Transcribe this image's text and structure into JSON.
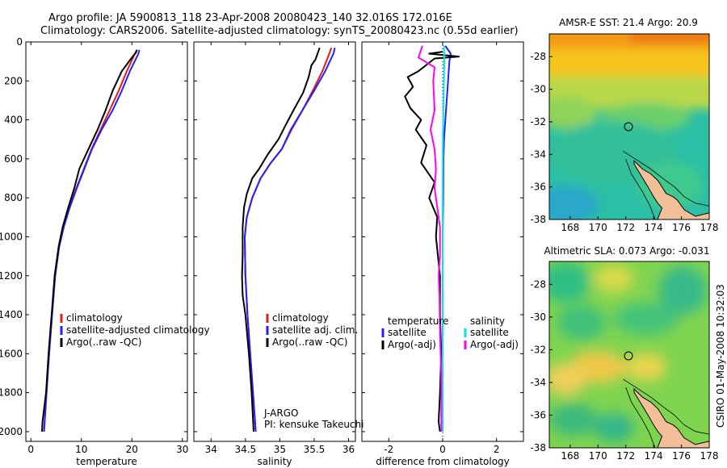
{
  "header": {
    "line1": "Argo profile: JA 5900813_118 23-Apr-2008 20080423_140 32.016S 172.016E",
    "line2": "Climatology: CARS2006. Satellite-adjusted climatology: synTS_20080423.nc (0.55d earlier)"
  },
  "side_label": "CSIRO 01-May-2008 10:32:03",
  "float_info": {
    "program": "J-ARGO",
    "pi": "PI: kensuke Takeuchi"
  },
  "colors": {
    "climatology": "#e31a1c",
    "satellite": "#1f1fff",
    "argo": "#000000",
    "salinity_satellite": "#00e5e5",
    "salinity_argo": "#ff00ff",
    "land": "#f3bf98"
  },
  "chart_data": [
    {
      "id": "temperature",
      "type": "line",
      "xlabel": "temperature",
      "ylabel": "",
      "xlim": [
        -1,
        31
      ],
      "ylim": [
        2050,
        0
      ],
      "xticks": [
        "0",
        "10",
        "20",
        "30"
      ],
      "yticks": [
        "0",
        "200",
        "400",
        "600",
        "800",
        "1000",
        "1200",
        "1400",
        "1600",
        "1800",
        "2000"
      ],
      "legend": [
        "climatology",
        "satellite-adjusted climatology",
        "Argo(..raw -QC)"
      ],
      "series": [
        {
          "name": "climatology",
          "color": "#e31a1c",
          "points": [
            [
              21.0,
              40
            ],
            [
              20.6,
              60
            ],
            [
              19.0,
              150
            ],
            [
              17.4,
              250
            ],
            [
              15.6,
              350
            ],
            [
              13.8,
              450
            ],
            [
              12.0,
              550
            ],
            [
              10.5,
              650
            ],
            [
              9.0,
              750
            ],
            [
              7.6,
              850
            ],
            [
              6.5,
              950
            ],
            [
              5.6,
              1050
            ],
            [
              4.8,
              1200
            ],
            [
              4.2,
              1400
            ],
            [
              3.6,
              1600
            ],
            [
              3.1,
              1800
            ],
            [
              2.6,
              2000
            ]
          ]
        },
        {
          "name": "satellite-adjusted climatology",
          "color": "#1f1fff",
          "points": [
            [
              21.5,
              40
            ],
            [
              21.3,
              60
            ],
            [
              19.6,
              150
            ],
            [
              18.0,
              250
            ],
            [
              16.2,
              350
            ],
            [
              14.0,
              450
            ],
            [
              12.1,
              550
            ],
            [
              10.6,
              650
            ],
            [
              9.1,
              750
            ],
            [
              7.7,
              850
            ],
            [
              6.5,
              950
            ],
            [
              5.6,
              1050
            ],
            [
              4.8,
              1200
            ],
            [
              4.2,
              1400
            ],
            [
              3.6,
              1600
            ],
            [
              3.1,
              1800
            ],
            [
              2.6,
              2000
            ]
          ]
        },
        {
          "name": "Argo(..raw -QC)",
          "color": "#000000",
          "points": [
            [
              21.0,
              40
            ],
            [
              20.8,
              55
            ],
            [
              20.3,
              70
            ],
            [
              18.0,
              150
            ],
            [
              16.2,
              250
            ],
            [
              14.8,
              350
            ],
            [
              13.2,
              450
            ],
            [
              11.4,
              550
            ],
            [
              9.6,
              650
            ],
            [
              8.6,
              750
            ],
            [
              7.4,
              850
            ],
            [
              6.3,
              950
            ],
            [
              5.5,
              1050
            ],
            [
              4.7,
              1200
            ],
            [
              4.1,
              1400
            ],
            [
              3.5,
              1600
            ],
            [
              3.0,
              1800
            ],
            [
              2.3,
              1950
            ],
            [
              2.2,
              2000
            ]
          ]
        }
      ]
    },
    {
      "id": "salinity",
      "type": "line",
      "xlabel": "salinity",
      "ylabel": "",
      "xlim": [
        33.75,
        36.1
      ],
      "ylim": [
        2050,
        0
      ],
      "xticks": [
        "34",
        "34.5",
        "35",
        "35.5",
        "36"
      ],
      "legend": [
        "climatology",
        "satellite adj. clim.",
        "Argo(..raw -QC)"
      ],
      "series": [
        {
          "name": "climatology",
          "color": "#e31a1c",
          "points": [
            [
              35.75,
              30
            ],
            [
              35.72,
              60
            ],
            [
              35.62,
              150
            ],
            [
              35.48,
              250
            ],
            [
              35.33,
              350
            ],
            [
              35.17,
              450
            ],
            [
              35.03,
              550
            ],
            [
              34.87,
              620
            ],
            [
              34.72,
              700
            ],
            [
              34.6,
              800
            ],
            [
              34.52,
              900
            ],
            [
              34.49,
              1000
            ],
            [
              34.5,
              1200
            ],
            [
              34.53,
              1400
            ],
            [
              34.57,
              1600
            ],
            [
              34.61,
              1800
            ],
            [
              34.65,
              2000
            ]
          ]
        },
        {
          "name": "satellite adj. clim.",
          "color": "#1f1fff",
          "points": [
            [
              35.8,
              30
            ],
            [
              35.78,
              60
            ],
            [
              35.66,
              150
            ],
            [
              35.5,
              250
            ],
            [
              35.33,
              350
            ],
            [
              35.16,
              450
            ],
            [
              35.03,
              550
            ],
            [
              34.87,
              620
            ],
            [
              34.72,
              700
            ],
            [
              34.6,
              800
            ],
            [
              34.52,
              900
            ],
            [
              34.49,
              1000
            ],
            [
              34.5,
              1200
            ],
            [
              34.53,
              1400
            ],
            [
              34.57,
              1600
            ],
            [
              34.61,
              1800
            ],
            [
              34.65,
              2000
            ]
          ]
        },
        {
          "name": "Argo(..raw -QC)",
          "color": "#000000",
          "points": [
            [
              35.58,
              30
            ],
            [
              35.56,
              50
            ],
            [
              35.52,
              90
            ],
            [
              35.46,
              120
            ],
            [
              35.42,
              180
            ],
            [
              35.34,
              260
            ],
            [
              35.2,
              350
            ],
            [
              35.08,
              430
            ],
            [
              34.98,
              500
            ],
            [
              34.82,
              580
            ],
            [
              34.7,
              650
            ],
            [
              34.6,
              700
            ],
            [
              34.52,
              780
            ],
            [
              34.48,
              850
            ],
            [
              34.46,
              950
            ],
            [
              34.46,
              1100
            ],
            [
              34.45,
              1200
            ],
            [
              34.46,
              1300
            ],
            [
              34.5,
              1400
            ],
            [
              34.55,
              1600
            ],
            [
              34.59,
              1800
            ],
            [
              34.62,
              2000
            ]
          ]
        }
      ]
    },
    {
      "id": "difference",
      "type": "line",
      "xlabel": "difference from climatology",
      "ylabel": "",
      "xlim": [
        -3,
        3
      ],
      "ylim": [
        2050,
        0
      ],
      "xticks": [
        "-2",
        "0",
        "2"
      ],
      "legend_headers": [
        "temperature",
        "salinity"
      ],
      "legend": [
        "satellite",
        "Argo(-adj)",
        "satellite",
        "Argo(-adj)"
      ],
      "series": [
        {
          "name": "temperature satellite",
          "color": "#1f1fff",
          "points": [
            [
              0.1,
              20
            ],
            [
              0.3,
              60
            ],
            [
              0.25,
              100
            ],
            [
              0.2,
              200
            ],
            [
              0.15,
              300
            ],
            [
              0.1,
              400
            ],
            [
              0.05,
              500
            ],
            [
              0.03,
              600
            ],
            [
              0.02,
              800
            ],
            [
              0.0,
              1000
            ],
            [
              0.0,
              1500
            ],
            [
              0.0,
              2000
            ]
          ]
        },
        {
          "name": "temperature Argo(-adj)",
          "color": "#000000",
          "points": [
            [
              0.0,
              50
            ],
            [
              -0.5,
              60
            ],
            [
              0.6,
              75
            ],
            [
              -0.3,
              85
            ],
            [
              -0.9,
              150
            ],
            [
              -1.3,
              180
            ],
            [
              -1.1,
              230
            ],
            [
              -1.4,
              280
            ],
            [
              -1.2,
              340
            ],
            [
              -0.8,
              400
            ],
            [
              -1.0,
              450
            ],
            [
              -0.6,
              530
            ],
            [
              -0.8,
              620
            ],
            [
              -0.3,
              720
            ],
            [
              -0.5,
              800
            ],
            [
              -0.2,
              900
            ],
            [
              -0.25,
              1000
            ],
            [
              -0.1,
              1200
            ],
            [
              -0.1,
              1400
            ],
            [
              -0.05,
              1600
            ],
            [
              -0.1,
              1800
            ],
            [
              -0.15,
              1950
            ],
            [
              -0.1,
              2000
            ]
          ]
        },
        {
          "name": "salinity satellite",
          "color": "#00e5e5",
          "points": [
            [
              0.05,
              20
            ],
            [
              0.06,
              100
            ],
            [
              0.03,
              300
            ],
            [
              0.01,
              500
            ],
            [
              0.0,
              800
            ],
            [
              0.0,
              1200
            ],
            [
              0.0,
              2000
            ]
          ]
        },
        {
          "name": "salinity Argo(-adj)",
          "color": "#ff00ff",
          "points": [
            [
              -0.75,
              20
            ],
            [
              -0.9,
              80
            ],
            [
              -0.3,
              130
            ],
            [
              -0.35,
              200
            ],
            [
              -0.3,
              350
            ],
            [
              -0.45,
              450
            ],
            [
              -0.3,
              550
            ],
            [
              -0.25,
              650
            ],
            [
              -0.3,
              750
            ],
            [
              -0.2,
              850
            ],
            [
              -0.1,
              950
            ],
            [
              -0.1,
              1100
            ],
            [
              -0.15,
              1200
            ],
            [
              -0.12,
              1300
            ],
            [
              -0.1,
              1500
            ],
            [
              -0.05,
              1700
            ],
            [
              -0.05,
              2000
            ]
          ]
        }
      ]
    },
    {
      "id": "sst_map",
      "type": "heatmap",
      "title": "AMSR-E SST: 21.4 Argo: 20.9",
      "xlim": [
        166.5,
        178
      ],
      "ylim": [
        -38,
        -26.6
      ],
      "xticks": [
        "168",
        "170",
        "172",
        "174",
        "176",
        "178"
      ],
      "yticks": [
        "-28",
        "-30",
        "-32",
        "-34",
        "-36",
        "-38"
      ],
      "float_position": {
        "lon": 172.016,
        "lat": -32.016
      }
    },
    {
      "id": "sla_map",
      "type": "heatmap",
      "title": "Altimetric SLA: 0.073 Argo: -0.031",
      "xlim": [
        166.5,
        178
      ],
      "ylim": [
        -38,
        -26.6
      ],
      "xticks": [
        "168",
        "170",
        "172",
        "174",
        "176",
        "178"
      ],
      "yticks": [
        "-28",
        "-30",
        "-32",
        "-34",
        "-36",
        "-38"
      ],
      "float_position": {
        "lon": 172.016,
        "lat": -32.016
      }
    }
  ]
}
